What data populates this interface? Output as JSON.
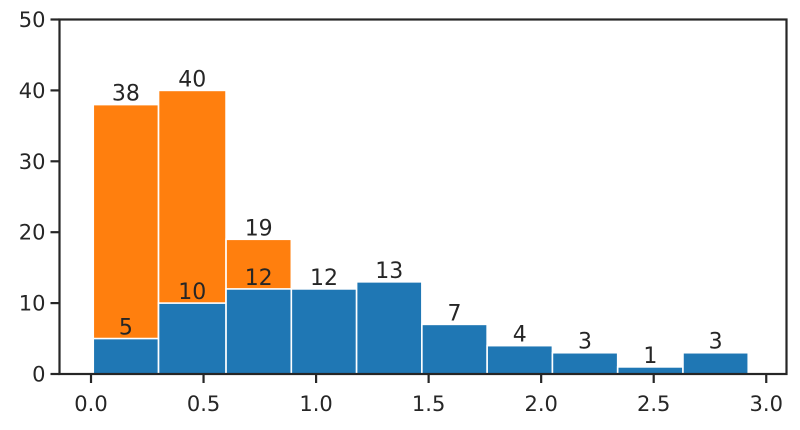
{
  "chart_data": {
    "type": "bar",
    "subtype": "overlaid-histogram",
    "title": "",
    "xlabel": "",
    "ylabel": "",
    "xlim": [
      -0.14,
      3.09
    ],
    "ylim": [
      0,
      50
    ],
    "xticks": [
      "0.0",
      "0.5",
      "1.0",
      "1.5",
      "2.0",
      "2.5",
      "3.0"
    ],
    "xtick_values": [
      0.0,
      0.5,
      1.0,
      1.5,
      2.0,
      2.5,
      3.0
    ],
    "yticks": [
      "0",
      "10",
      "20",
      "30",
      "40",
      "50"
    ],
    "ytick_values": [
      0,
      10,
      20,
      30,
      40,
      50
    ],
    "grid": false,
    "legend": null,
    "bin_edges": [
      0.01,
      0.3,
      0.6,
      0.89,
      1.18,
      1.47,
      1.76,
      2.05,
      2.34,
      2.63,
      2.92
    ],
    "series": [
      {
        "name": "orange",
        "color": "#ff7f0e",
        "values": [
          38,
          40,
          19
        ],
        "bins": [
          0,
          1,
          2
        ]
      },
      {
        "name": "blue",
        "color": "#1f77b4",
        "values": [
          5,
          10,
          12,
          12,
          13,
          7,
          4,
          3,
          1,
          3
        ],
        "bins": [
          0,
          1,
          2,
          3,
          4,
          5,
          6,
          7,
          8,
          9
        ]
      }
    ],
    "annotations": [
      "38",
      "40",
      "19",
      "5",
      "10",
      "12",
      "12",
      "13",
      "7",
      "4",
      "3",
      "1",
      "3"
    ]
  }
}
